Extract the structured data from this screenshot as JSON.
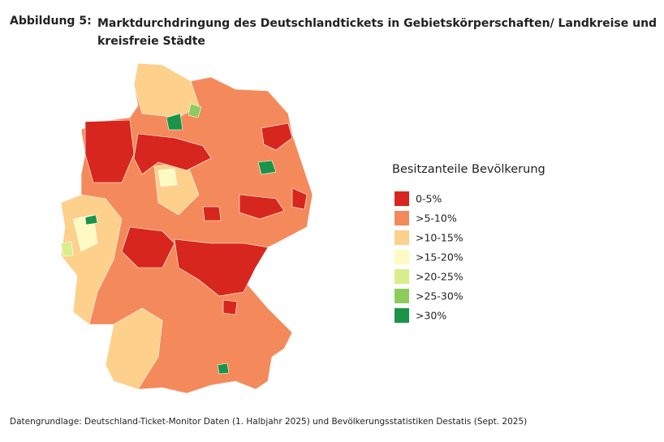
{
  "header": {
    "label": "Abbildung 5:",
    "title": "Marktdurchdringung des Deutschlandtickets in Gebietskörperschaften/ Landkreise und kreisfreie Städte"
  },
  "legend": {
    "title": "Besitzanteile Bevölkerung",
    "items": [
      {
        "label": "0-5%",
        "color": "#d7261e"
      },
      {
        "label": ">5-10%",
        "color": "#f48a5b"
      },
      {
        "label": ">10-15%",
        "color": "#fdd08b"
      },
      {
        "label": ">15-20%",
        "color": "#fefac2"
      },
      {
        "label": ">20-25%",
        "color": "#d8ee8c"
      },
      {
        "label": ">25-30%",
        "color": "#8ccc5e"
      },
      {
        "label": ">30%",
        "color": "#1a9448"
      }
    ]
  },
  "source": "Datengrundlage: Deutschland-Ticket-Monitor Daten (1. Halbjahr 2025) und Bevölkerungsstatistiken Destatis (Sept. 2025)"
}
